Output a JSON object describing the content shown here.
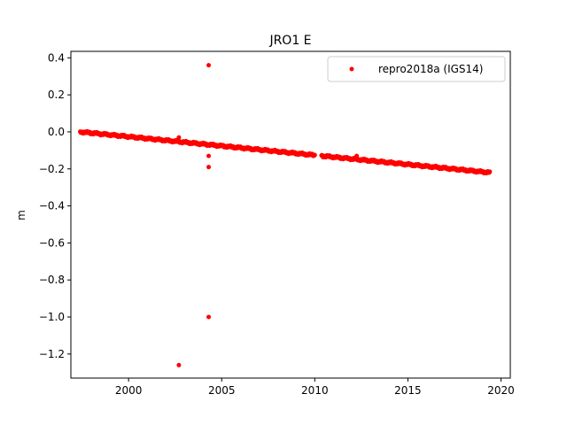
{
  "chart_data": {
    "type": "scatter",
    "title": "JRO1 E",
    "xlabel": "",
    "ylabel": "m",
    "xlim": [
      1996.9,
      2020.5
    ],
    "ylim": [
      -1.33,
      0.435
    ],
    "xticks": [
      2000,
      2005,
      2010,
      2015,
      2020
    ],
    "yticks": [
      0.4,
      0.2,
      0.0,
      -0.2,
      -0.4,
      -0.6,
      -0.8,
      -1.0,
      -1.2
    ],
    "xtick_labels": [
      "2000",
      "2005",
      "2010",
      "2015",
      "2020"
    ],
    "ytick_labels": [
      "0.4",
      "0.2",
      "0.0",
      "−0.2",
      "−0.4",
      "−0.6",
      "−0.8",
      "−1.0",
      "−1.2"
    ],
    "grid": false,
    "legend_position": "top-right",
    "series": [
      {
        "name": "repro2018a (IGS14)",
        "color": "#ff0000",
        "marker": "circle",
        "trend": {
          "x_start": 1997.4,
          "x_end": 2019.4,
          "y_start": 0.0,
          "y_end": -0.22,
          "gaps": [
            [
              2010.0,
              2010.35
            ]
          ]
        },
        "outliers": [
          {
            "x": 2002.7,
            "y": -1.26
          },
          {
            "x": 2002.7,
            "y": -0.03
          },
          {
            "x": 2004.3,
            "y": 0.36
          },
          {
            "x": 2004.3,
            "y": -0.13
          },
          {
            "x": 2004.3,
            "y": -0.19
          },
          {
            "x": 2004.3,
            "y": -1.0
          },
          {
            "x": 2012.25,
            "y": -0.13
          }
        ]
      }
    ]
  }
}
